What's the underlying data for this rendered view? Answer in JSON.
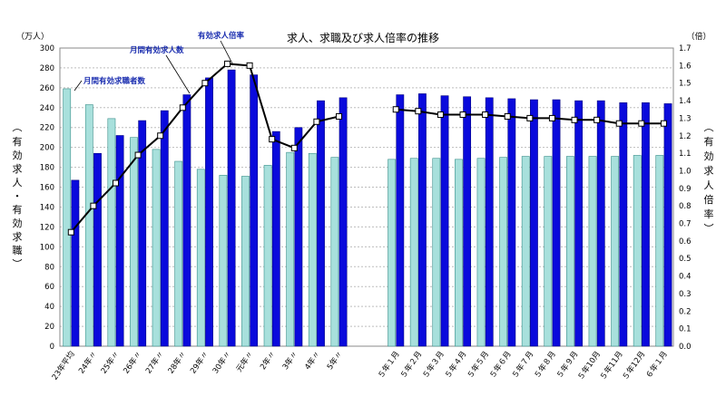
{
  "chart_data": {
    "type": "bar",
    "title": "求人、求職及び求人倍率の推移",
    "y_left_unit": "（万人）",
    "y_right_unit": "（倍）",
    "y_left_label": [
      "有",
      "効",
      "求",
      "人",
      "・",
      "有",
      "効",
      "求",
      "職"
    ],
    "y_right_label": [
      "有",
      "効",
      "求",
      "人",
      "倍",
      "率"
    ],
    "y_left_range": [
      0,
      300
    ],
    "y_left_ticks": [
      "0",
      "20",
      "40",
      "60",
      "80",
      "100",
      "120",
      "140",
      "160",
      "180",
      "200",
      "220",
      "240",
      "260",
      "280",
      "300"
    ],
    "y_right_range": [
      0.0,
      1.7
    ],
    "y_right_ticks": [
      "0.0",
      "0.1",
      "0.2",
      "0.3",
      "0.4",
      "0.5",
      "0.6",
      "0.7",
      "0.8",
      "0.9",
      "1.0",
      "1.1",
      "1.2",
      "1.3",
      "1.4",
      "1.5",
      "1.6",
      "1.7"
    ],
    "categories_annual": [
      "23年平均",
      "24年〃",
      "25年〃",
      "26年〃",
      "27年〃",
      "28年〃",
      "29年〃",
      "30年〃",
      "元年〃",
      "2年〃",
      "3年〃",
      "4年〃",
      "5年〃"
    ],
    "categories_monthly": [
      "５年１月",
      "５年２月",
      "５年３月",
      "５年４月",
      "５年５月",
      "５年６月",
      "５年７月",
      "５年８月",
      "５年９月",
      "５年10月",
      "５年11月",
      "５年12月",
      "６年１月"
    ],
    "series": [
      {
        "name": "月間有効求職者数",
        "axis": "left",
        "color": "#a8e0dc",
        "annual": [
          259,
          243,
          229,
          210,
          198,
          186,
          178,
          172,
          171,
          182,
          195,
          194,
          190
        ],
        "monthly": [
          188,
          189,
          189,
          188,
          189,
          190,
          191,
          191,
          191,
          191,
          191,
          192,
          192
        ]
      },
      {
        "name": "月間有効求人数",
        "axis": "left",
        "color": "#0a0adc",
        "annual": [
          167,
          194,
          212,
          227,
          237,
          253,
          270,
          278,
          273,
          216,
          220,
          247,
          250
        ],
        "monthly": [
          253,
          254,
          252,
          251,
          250,
          249,
          248,
          248,
          247,
          247,
          245,
          245,
          244
        ]
      },
      {
        "name": "有効求人倍率",
        "axis": "right",
        "color": "#000000",
        "annual": [
          0.65,
          0.8,
          0.93,
          1.09,
          1.2,
          1.36,
          1.5,
          1.61,
          1.6,
          1.18,
          1.13,
          1.28,
          1.31
        ],
        "monthly": [
          1.35,
          1.34,
          1.32,
          1.32,
          1.32,
          1.31,
          1.3,
          1.3,
          1.29,
          1.29,
          1.27,
          1.27,
          1.27
        ]
      }
    ],
    "annotations": [
      "月間有効求人数",
      "有効求人倍率",
      "月間有効求職者数"
    ],
    "grid": true
  }
}
